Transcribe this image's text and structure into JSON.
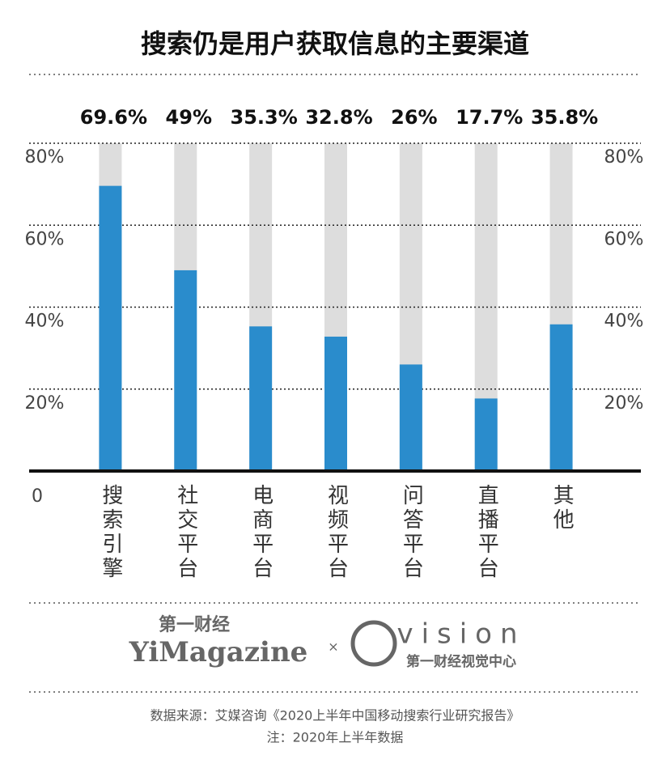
{
  "chart_data": {
    "type": "bar",
    "title": "搜索仍是用户获取信息的主要渠道",
    "categories": [
      "搜索引擎",
      "社交平台",
      "电商平台",
      "视频平台",
      "问答平台",
      "直播平台",
      "其他"
    ],
    "values": [
      69.6,
      49,
      35.3,
      32.8,
      26,
      17.7,
      35.8
    ],
    "value_labels": [
      "69.6%",
      "49%",
      "35.3%",
      "32.8%",
      "26%",
      "17.7%",
      "35.8%"
    ],
    "color": "#2a8ccc",
    "ylim": [
      0,
      80
    ],
    "yticks": [
      0,
      {
        "value": 20,
        "label": "20%"
      },
      {
        "value": 40,
        "label": "40%"
      },
      {
        "value": 60,
        "label": "60%"
      },
      {
        "value": 80,
        "label": "80%"
      }
    ],
    "grid": true
  },
  "footer": {
    "brand_cn": "第一财经",
    "brand_en": "YiMagazine",
    "times": "×",
    "vision": "vision",
    "vision_cn": "第一财经视觉中心",
    "source": "数据来源：艾媒咨询《2020上半年中国移动搜索行业研究报告》",
    "note": "注：2020年上半年数据"
  }
}
